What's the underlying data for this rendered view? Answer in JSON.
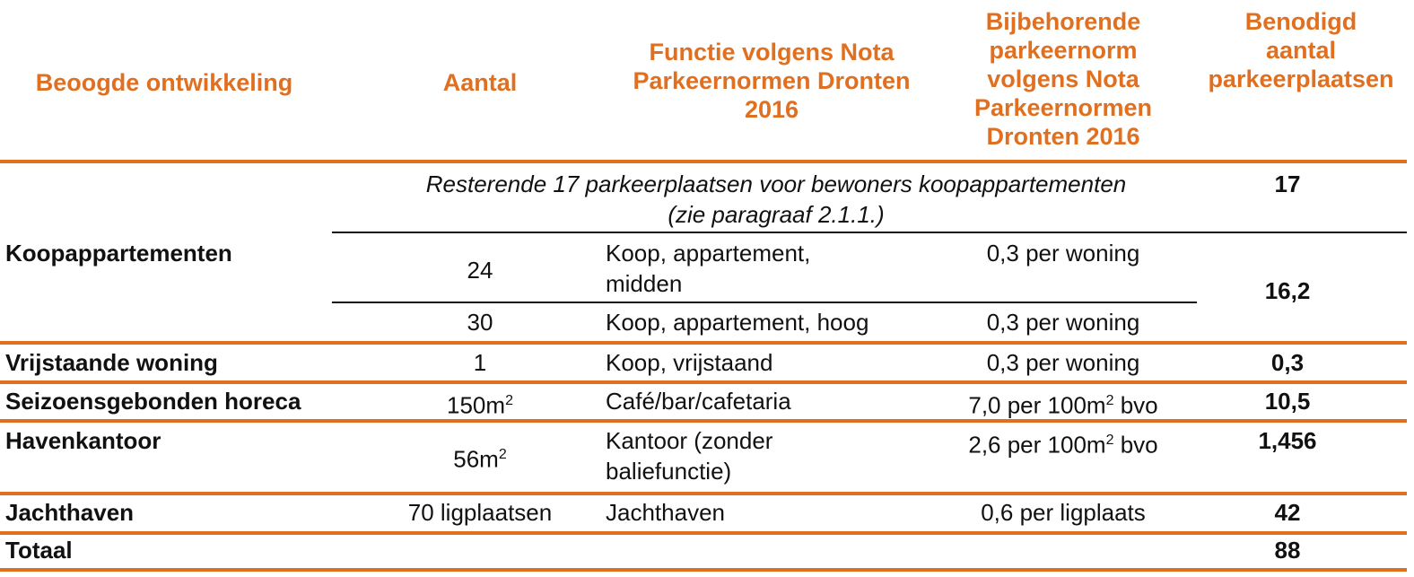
{
  "colors": {
    "accent": "#E07020",
    "text": "#111111"
  },
  "header": {
    "col1": "Beoogde ontwikkeling",
    "col2": "Aantal",
    "col3_l1": "Functie volgens Nota",
    "col3_l2": "Parkeernormen Dronten",
    "col3_l3": "2016",
    "col4_l1": "Bijbehorende",
    "col4_l2": "parkeernorm",
    "col4_l3": "volgens Nota",
    "col4_l4": "Parkeernormen",
    "col4_l5": "Dronten 2016",
    "col5_l1": "Benodigd",
    "col5_l2": "aantal",
    "col5_l3": "parkeerplaatsen"
  },
  "rows": {
    "resterende_note_l1": "Resterende 17 parkeerplaatsen voor bewoners koopappartementen",
    "resterende_note_l2": "(zie paragraaf 2.1.1.)",
    "resterende_value": "17",
    "koop_label": "Koopappartementen",
    "koop_mid_aantal": "24",
    "koop_mid_functie_l1": "Koop, appartement,",
    "koop_mid_functie_l2": "midden",
    "koop_mid_norm": "0,3 per woning",
    "koop_value": "16,2",
    "koop_hoog_aantal": "30",
    "koop_hoog_functie": "Koop, appartement, hoog",
    "koop_hoog_norm": "0,3 per woning",
    "vrij_label": "Vrijstaande woning",
    "vrij_aantal": "1",
    "vrij_functie": "Koop, vrijstaand",
    "vrij_norm": "0,3 per woning",
    "vrij_value": "0,3",
    "horeca_label": "Seizoensgebonden horeca",
    "horeca_aantal_base": "150m",
    "horeca_functie": "Café/bar/cafetaria",
    "horeca_norm_a": "7,0 per 100m",
    "horeca_norm_b": " bvo",
    "horeca_value": "10,5",
    "haven_label": "Havenkantoor",
    "haven_aantal_base": "56m",
    "haven_functie_l1": "Kantoor (zonder",
    "haven_functie_l2": "baliefunctie)",
    "haven_norm_a": "2,6 per 100m",
    "haven_norm_b": " bvo",
    "haven_value": "1,456",
    "jacht_label": "Jachthaven",
    "jacht_aantal": "70 ligplaatsen",
    "jacht_functie": "Jachthaven",
    "jacht_norm": "0,6 per ligplaats",
    "jacht_value": "42",
    "totaal_label": "Totaal",
    "totaal_value": "88",
    "sup": "2"
  }
}
